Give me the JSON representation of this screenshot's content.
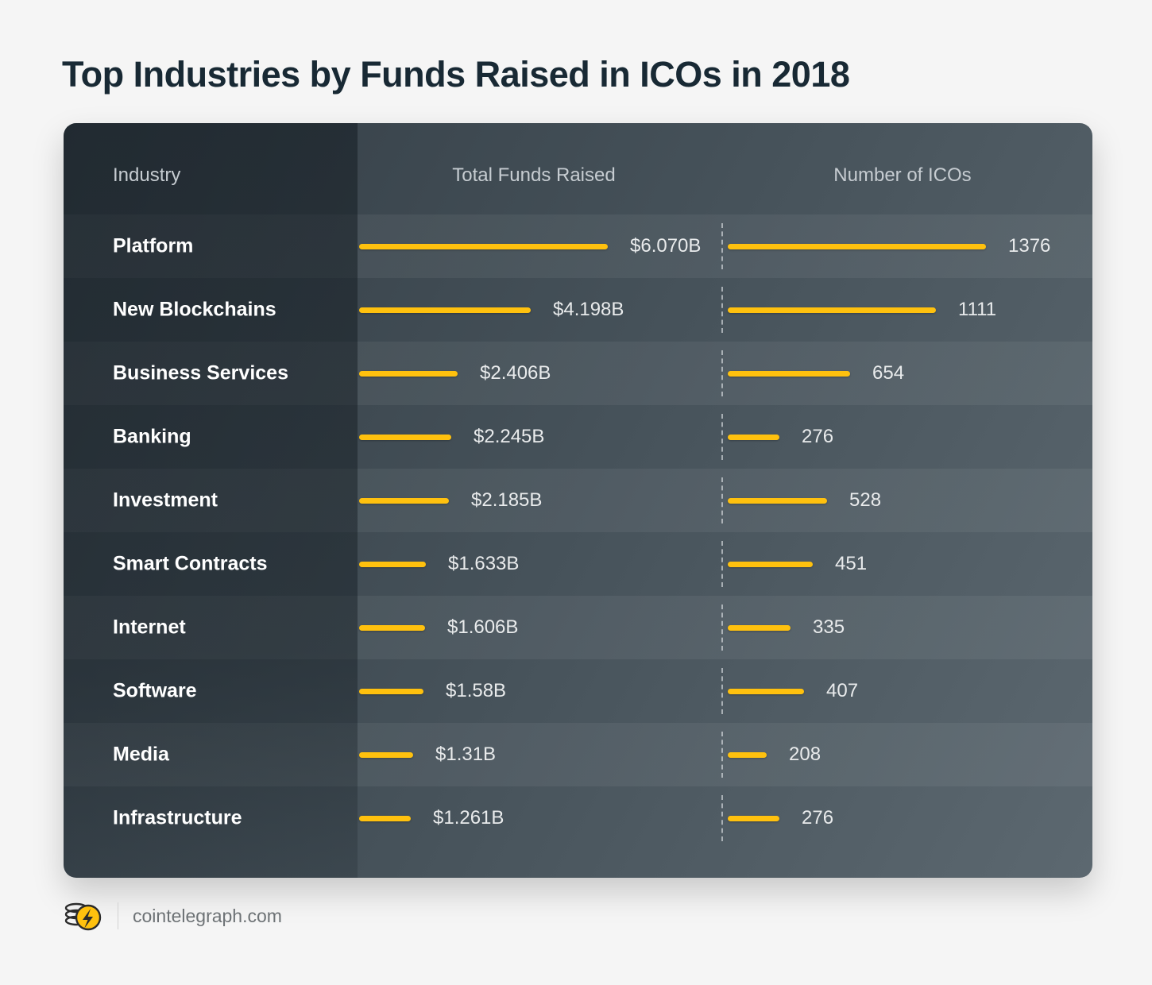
{
  "page": {
    "title": "Top Industries by Funds Raised in ICOs in 2018",
    "footer": {
      "logo_icon": "cointelegraph-coin-lightning-icon",
      "site": "cointelegraph.com"
    }
  },
  "header": {
    "industry": "Industry",
    "funds": "Total Funds Raised",
    "icos": "Number of ICOs"
  },
  "chart_data": {
    "type": "bar",
    "orientation": "horizontal",
    "title": "Top Industries by Funds Raised in ICOs in 2018",
    "categories": [
      "Platform",
      "New Blockchains",
      "Business Services",
      "Banking",
      "Investment",
      "Smart Contracts",
      "Internet",
      "Software",
      "Media",
      "Infrastructure"
    ],
    "series": [
      {
        "name": "Total Funds Raised",
        "unit": "USD billions",
        "values": [
          6.07,
          4.198,
          2.406,
          2.245,
          2.185,
          1.633,
          1.606,
          1.58,
          1.31,
          1.261
        ],
        "labels": [
          "$6.070B",
          "$4.198B",
          "$2.406B",
          "$2.245B",
          "$2.185B",
          "$1.633B",
          "$1.606B",
          "$1.58B",
          "$1.31B",
          "$1.261B"
        ]
      },
      {
        "name": "Number of ICOs",
        "values": [
          1376,
          1111,
          654,
          276,
          528,
          451,
          335,
          407,
          208,
          276
        ]
      }
    ],
    "funds_axis_max": 6.07,
    "icos_axis_max": 1376,
    "bar_color": "#FFC10E",
    "grid": false,
    "legend_position": "none"
  },
  "colors": {
    "accent": "#FFC10E",
    "card_dark": "#333d45",
    "card_light": "#5c6870",
    "title_text": "#182934",
    "header_text": "#c6ccd1",
    "value_text": "#e9ebec"
  }
}
